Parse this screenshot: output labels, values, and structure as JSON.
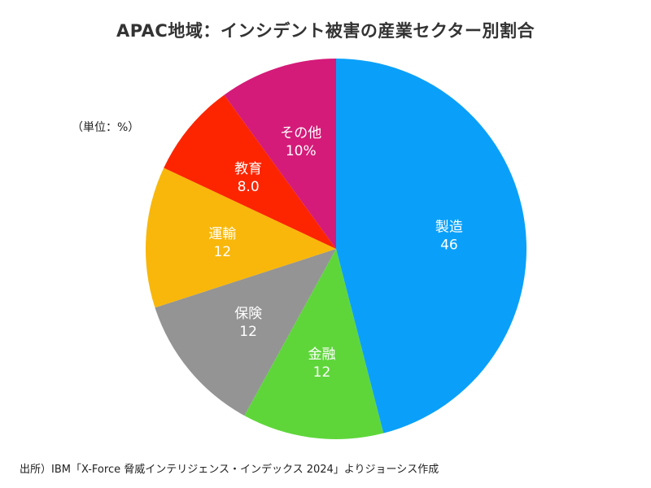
{
  "chart_data": {
    "type": "pie",
    "title": "APAC地域：インシデント被害の産業セクター別割合",
    "unit_note": "（単位：%）",
    "source": "出所）IBM「X-Force 脅威インテリジェンス・インデックス 2024」よりジョーシス作成",
    "start": "top (12 o'clock), clockwise",
    "slices": [
      {
        "name": "製造",
        "value": 46,
        "label": "46",
        "color": "#0aa0fa"
      },
      {
        "name": "金融",
        "value": 12,
        "label": "12",
        "color": "#5ed63a"
      },
      {
        "name": "保険",
        "value": 12,
        "label": "12",
        "color": "#949494"
      },
      {
        "name": "運輸",
        "value": 12,
        "label": "12",
        "color": "#f8b70a"
      },
      {
        "name": "教育",
        "value": 8,
        "label": "8.0",
        "color": "#fc2500"
      },
      {
        "name": "その他",
        "value": 10,
        "label": "10%",
        "color": "#d41b79"
      }
    ]
  }
}
